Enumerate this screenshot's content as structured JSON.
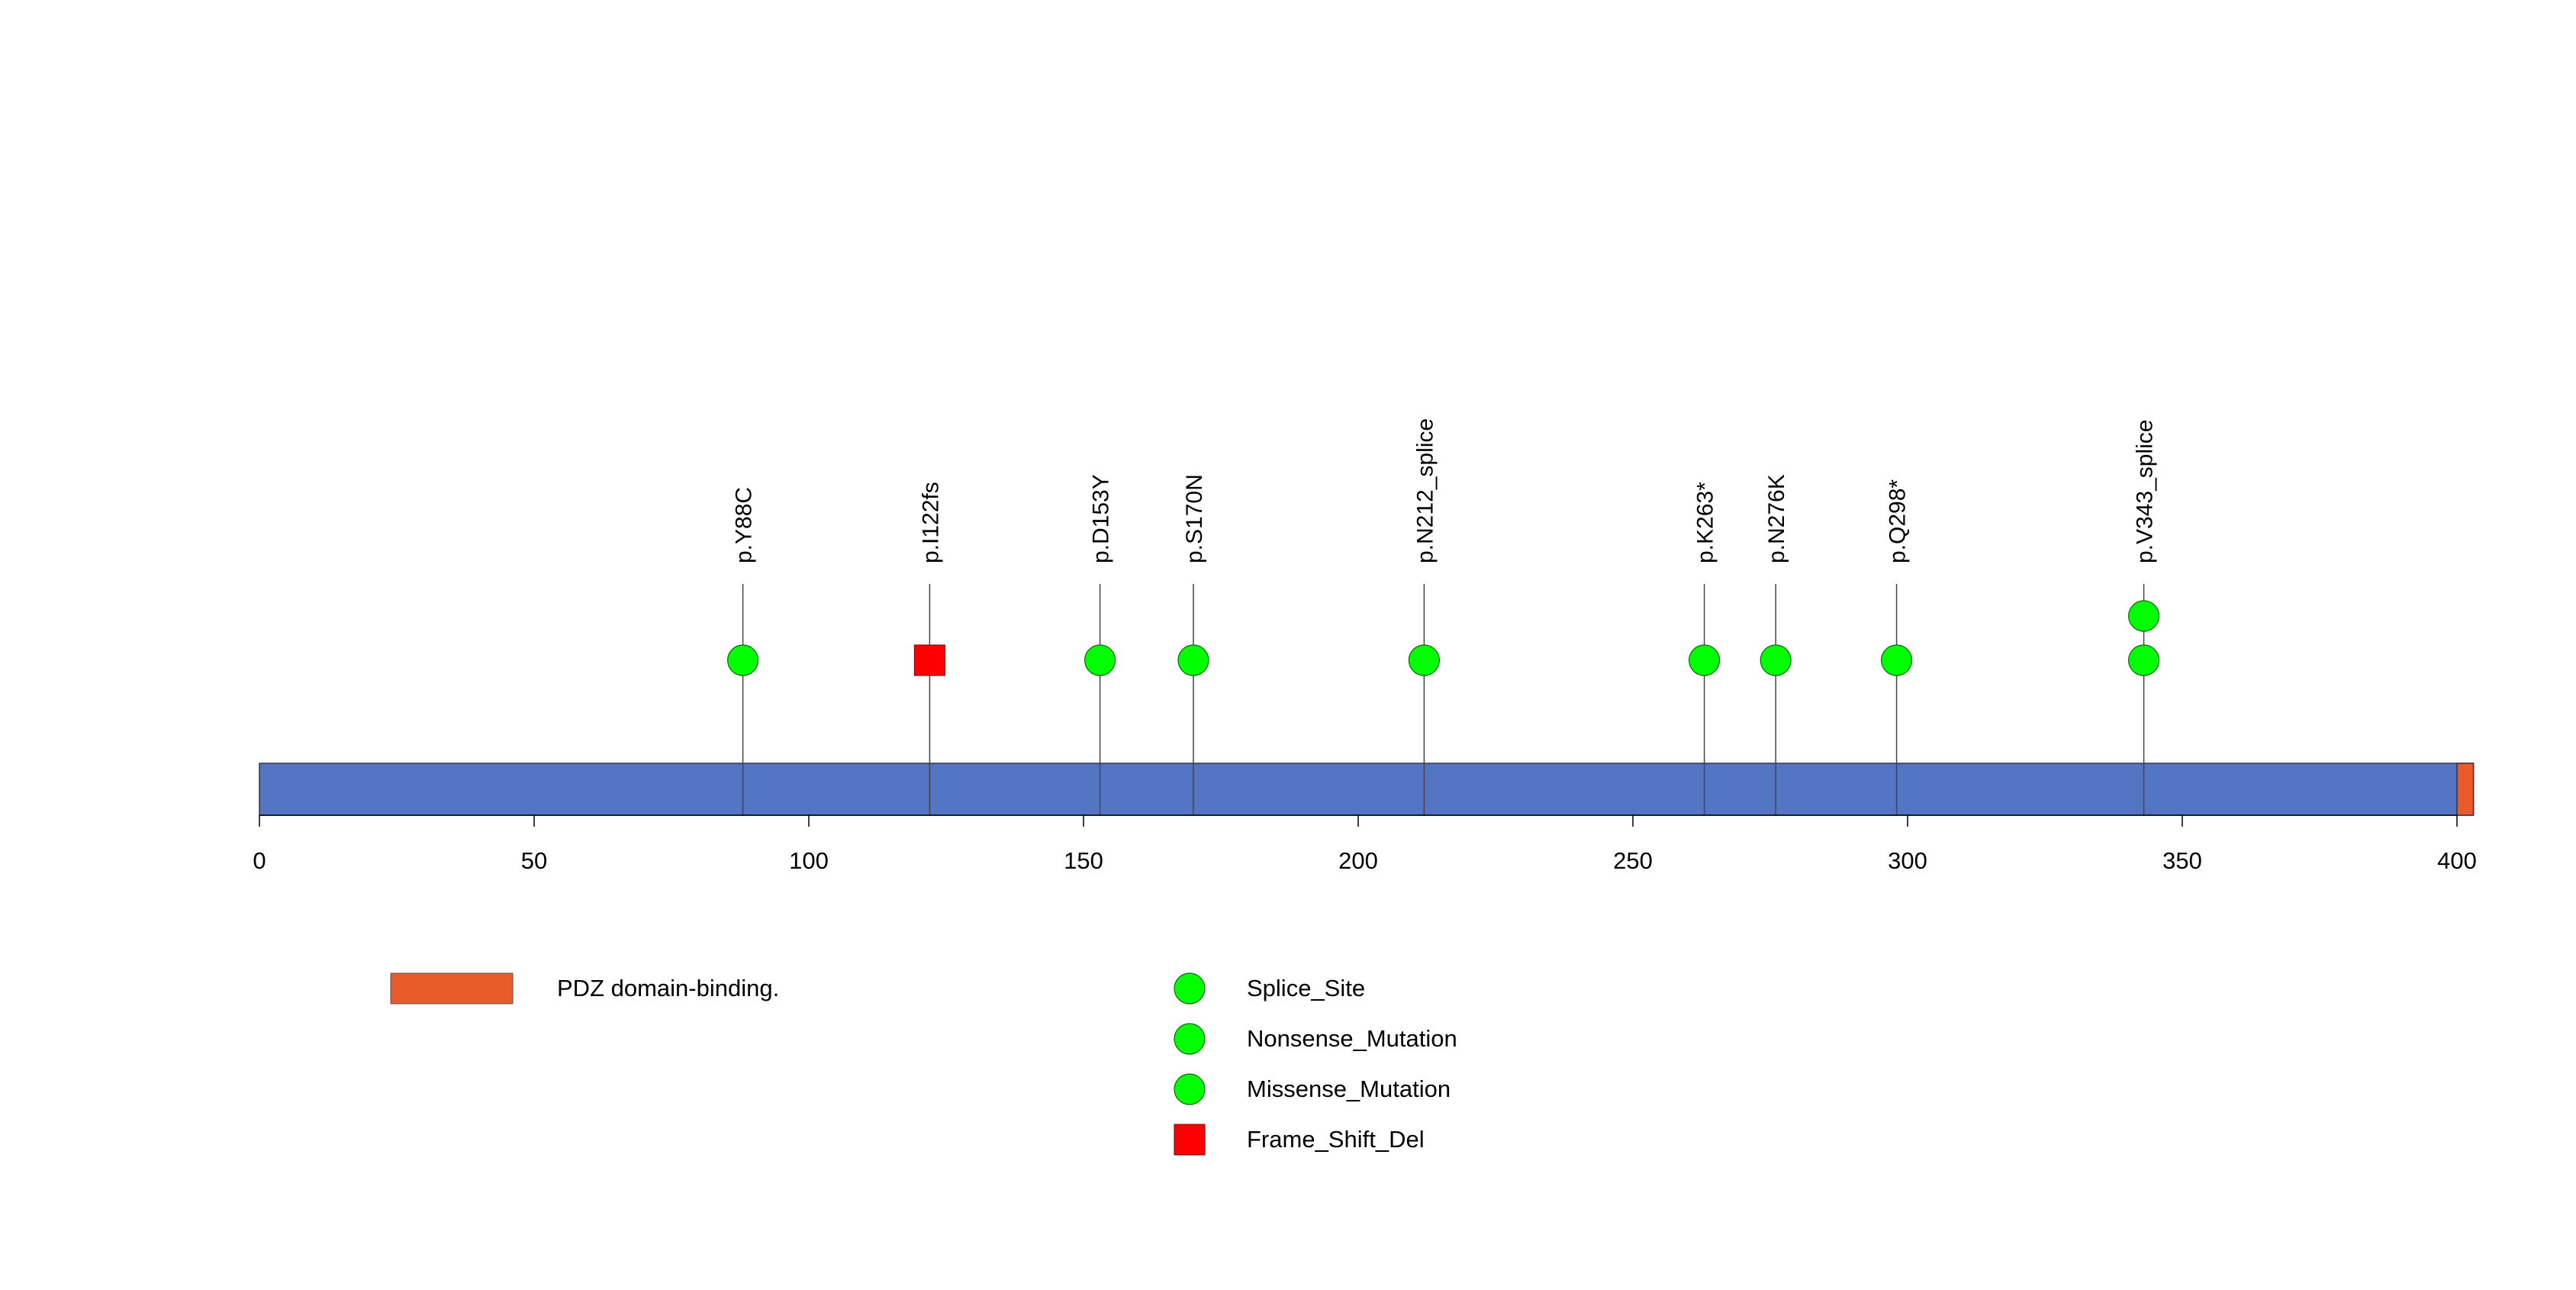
{
  "chart_data": {
    "type": "lollipop",
    "title": "",
    "protein_length": 403,
    "x_axis": {
      "min": 0,
      "max": 403,
      "ticks": [
        0,
        50,
        100,
        150,
        200,
        250,
        300,
        350,
        400
      ],
      "tick_labels": [
        "0",
        "50",
        "100",
        "150",
        "200",
        "250",
        "300",
        "350",
        "400"
      ]
    },
    "protein_color": "#5474C4",
    "domains": [
      {
        "name": "PDZ domain-binding.",
        "start": 400,
        "end": 403,
        "color": "#E95B2B"
      }
    ],
    "mutations": [
      {
        "label": "p.Y88C",
        "position": 88,
        "count": 1,
        "type": "Missense_Mutation"
      },
      {
        "label": "p.I122fs",
        "position": 122,
        "count": 1,
        "type": "Frame_Shift_Del"
      },
      {
        "label": "p.D153Y",
        "position": 153,
        "count": 1,
        "type": "Missense_Mutation"
      },
      {
        "label": "p.S170N",
        "position": 170,
        "count": 1,
        "type": "Missense_Mutation"
      },
      {
        "label": "p.N212_splice",
        "position": 212,
        "count": 1,
        "type": "Splice_Site"
      },
      {
        "label": "p.K263*",
        "position": 263,
        "count": 1,
        "type": "Nonsense_Mutation"
      },
      {
        "label": "p.N276K",
        "position": 276,
        "count": 1,
        "type": "Missense_Mutation"
      },
      {
        "label": "p.Q298*",
        "position": 298,
        "count": 1,
        "type": "Nonsense_Mutation"
      },
      {
        "label": "p.V343_splice",
        "position": 343,
        "count": 2,
        "type": "Splice_Site"
      }
    ],
    "mutation_types": [
      {
        "name": "Splice_Site",
        "shape": "circle",
        "color": "#00FF00"
      },
      {
        "name": "Nonsense_Mutation",
        "shape": "circle",
        "color": "#00FF00"
      },
      {
        "name": "Missense_Mutation",
        "shape": "circle",
        "color": "#00FF00"
      },
      {
        "name": "Frame_Shift_Del",
        "shape": "square",
        "color": "#FF0000"
      }
    ]
  }
}
